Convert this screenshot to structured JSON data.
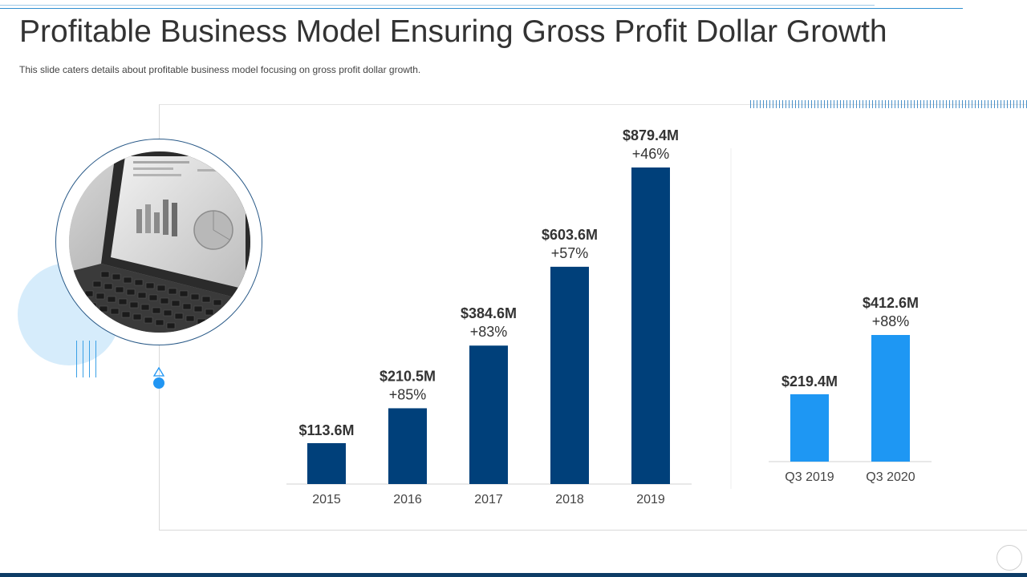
{
  "slide": {
    "title": "Profitable Business Model Ensuring Gross Profit Dollar Growth",
    "subtitle": "This slide caters details about profitable business model focusing on gross profit dollar growth."
  },
  "image": {
    "icon": "laptop-chart-photo"
  },
  "colors": {
    "annual_bar": "#00407a",
    "quarter_bar": "#1e97f3",
    "accent": "#2196f3"
  },
  "chart_data": [
    {
      "type": "bar",
      "title": "",
      "xlabel": "",
      "ylabel": "",
      "categories": [
        "2015",
        "2016",
        "2017",
        "2018",
        "2019"
      ],
      "values": [
        113.6,
        210.5,
        384.6,
        603.6,
        879.4
      ],
      "value_labels": [
        "$113.6M",
        "$210.5M",
        "$384.6M",
        "$603.6M",
        "$879.4M"
      ],
      "growth_labels": [
        "",
        "+85%",
        "+83%",
        "+57%",
        "+46%"
      ],
      "grid": false
    },
    {
      "type": "bar",
      "title": "",
      "xlabel": "",
      "ylabel": "",
      "categories": [
        "Q3 2019",
        "Q3 2020"
      ],
      "values": [
        219.4,
        412.6
      ],
      "value_labels": [
        "$219.4M",
        "$412.6M"
      ],
      "growth_labels": [
        "",
        "+88%"
      ],
      "grid": false
    }
  ]
}
